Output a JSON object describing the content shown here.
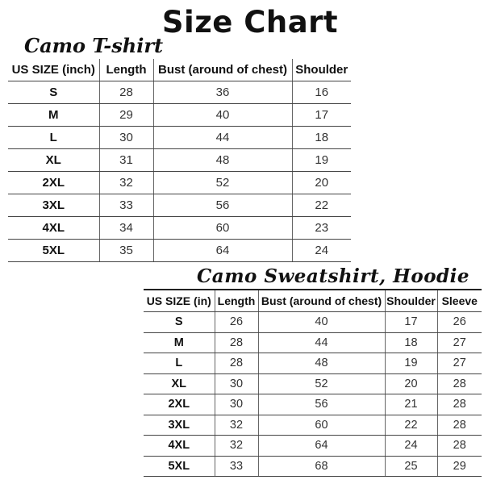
{
  "title": "Size Chart",
  "tshirt": {
    "title": "Camo T-shirt",
    "headers": [
      "US SIZE (inch)",
      "Length",
      "Bust (around of chest)",
      "Shoulder"
    ],
    "rows": [
      [
        "S",
        "28",
        "36",
        "16"
      ],
      [
        "M",
        "29",
        "40",
        "17"
      ],
      [
        "L",
        "30",
        "44",
        "18"
      ],
      [
        "XL",
        "31",
        "48",
        "19"
      ],
      [
        "2XL",
        "32",
        "52",
        "20"
      ],
      [
        "3XL",
        "33",
        "56",
        "22"
      ],
      [
        "4XL",
        "34",
        "60",
        "23"
      ],
      [
        "5XL",
        "35",
        "64",
        "24"
      ]
    ]
  },
  "hoodie": {
    "title": "Camo Sweatshirt, Hoodie",
    "headers": [
      "US SIZE (in)",
      "Length",
      "Bust (around of chest)",
      "Shoulder",
      "Sleeve"
    ],
    "rows": [
      [
        "S",
        "26",
        "40",
        "17",
        "26"
      ],
      [
        "M",
        "28",
        "44",
        "18",
        "27"
      ],
      [
        "L",
        "28",
        "48",
        "19",
        "27"
      ],
      [
        "XL",
        "30",
        "52",
        "20",
        "28"
      ],
      [
        "2XL",
        "30",
        "56",
        "21",
        "28"
      ],
      [
        "3XL",
        "32",
        "60",
        "22",
        "28"
      ],
      [
        "4XL",
        "32",
        "64",
        "24",
        "28"
      ],
      [
        "5XL",
        "33",
        "68",
        "25",
        "29"
      ]
    ]
  }
}
